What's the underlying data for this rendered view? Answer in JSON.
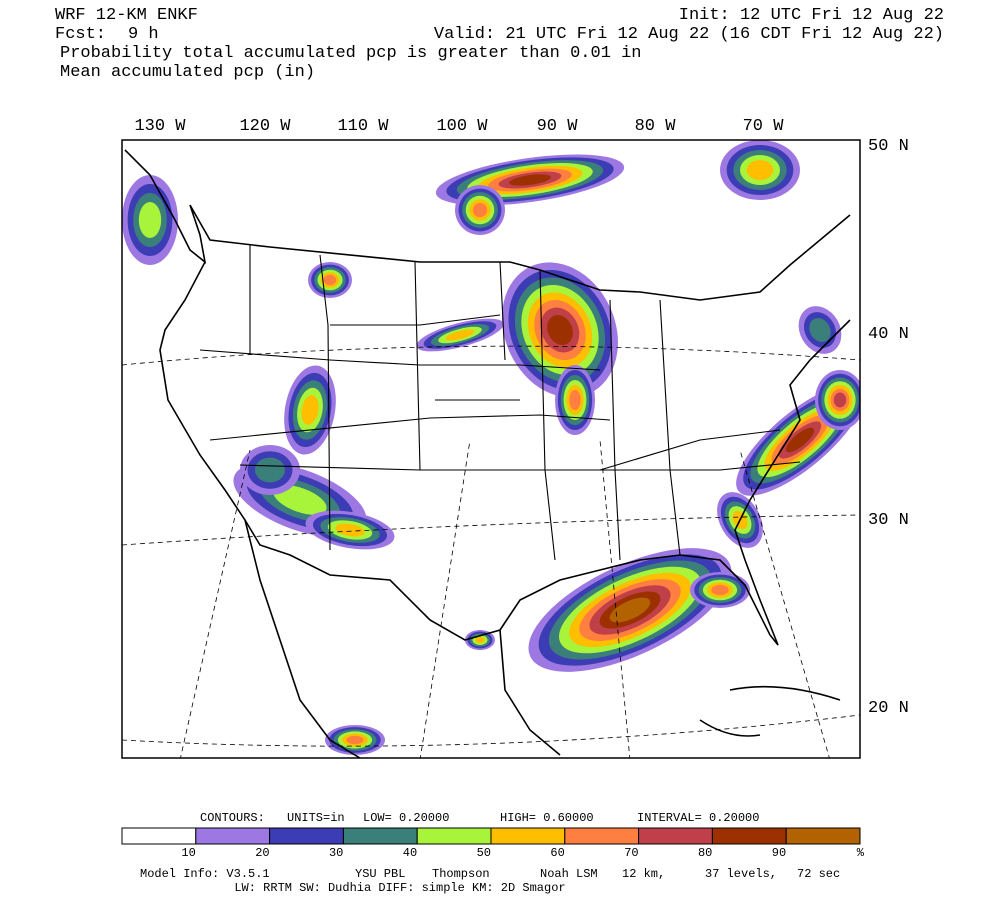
{
  "header": {
    "model": "WRF 12-KM ENKF",
    "init": "Init: 12 UTC Fri 12 Aug 22",
    "fcst_label": "Fcst:",
    "fcst": "9 h",
    "valid": "Valid: 21 UTC Fri 12 Aug 22 (16 CDT Fri 12 Aug 22)",
    "line3": "Probability total accumulated pcp is greater than 0.01 in",
    "line4": "Mean accumulated pcp (in)"
  },
  "map": {
    "lon_labels": [
      "130 W",
      "120 W",
      "110 W",
      "100 W",
      "90 W",
      "80 W",
      "70 W"
    ],
    "lat_labels": [
      "50 N",
      "40 N",
      "30 N",
      "20 N"
    ]
  },
  "colorbar": {
    "contours": [
      "CONTOURS:",
      "UNITS=in",
      "LOW= 0.20000",
      "HIGH= 0.60000",
      "INTERVAL= 0.20000"
    ],
    "colors": [
      "#ffffff",
      "#9d78e3",
      "#3c3cb4",
      "#3a7f7a",
      "#a8f43a",
      "#ffbf00",
      "#ff7f40",
      "#c0404a",
      "#9c3000",
      "#b26200"
    ],
    "ticks": [
      10,
      20,
      30,
      40,
      50,
      60,
      70,
      80,
      90
    ],
    "unit": "%"
  },
  "footer": {
    "line1": [
      "Model Info: V3.5.1",
      "YSU PBL",
      "Thompson",
      "Noah LSM",
      "12 km,",
      "37 levels,",
      "72 sec"
    ],
    "line2": "LW: RRTM SW: Dudhia DIFF: simple KM: 2D Smagor"
  }
}
